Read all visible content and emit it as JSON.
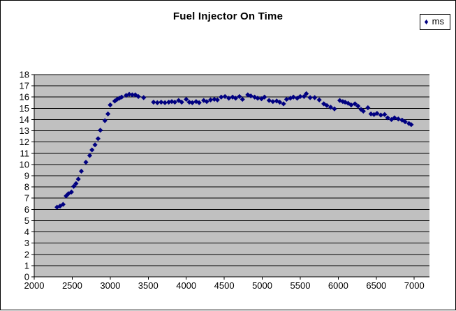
{
  "chart_data": {
    "type": "scatter",
    "title": "Fuel Injector On Time",
    "grid": true,
    "plot_background": "#C0C0C0",
    "gridline_color": "#000000",
    "axis_color": "#000000",
    "legend": {
      "position": "top-right",
      "entries": [
        {
          "label": "ms",
          "marker": "diamond-icon",
          "color": "#000080"
        }
      ]
    },
    "x_axis": {
      "min": 2000,
      "max": 7200,
      "major_unit": 500,
      "tick_labels": [
        2000,
        2500,
        3000,
        3500,
        4000,
        4500,
        5000,
        5500,
        6000,
        6500,
        7000
      ]
    },
    "y_axis": {
      "min": 0,
      "max": 18,
      "major_unit": 1,
      "tick_labels": [
        0,
        1,
        2,
        3,
        4,
        5,
        6,
        7,
        8,
        9,
        10,
        11,
        12,
        13,
        14,
        15,
        16,
        17,
        18
      ]
    },
    "series": [
      {
        "name": "ms",
        "marker": "diamond-icon",
        "marker_color": "#000080",
        "points": [
          [
            2300,
            6.2
          ],
          [
            2340,
            6.3
          ],
          [
            2380,
            6.45
          ],
          [
            2420,
            7.2
          ],
          [
            2450,
            7.4
          ],
          [
            2490,
            7.55
          ],
          [
            2520,
            8.05
          ],
          [
            2550,
            8.3
          ],
          [
            2580,
            8.7
          ],
          [
            2620,
            9.4
          ],
          [
            2680,
            10.2
          ],
          [
            2730,
            10.8
          ],
          [
            2760,
            11.3
          ],
          [
            2800,
            11.75
          ],
          [
            2840,
            12.3
          ],
          [
            2870,
            13.05
          ],
          [
            2930,
            13.9
          ],
          [
            2970,
            14.5
          ],
          [
            3000,
            15.3
          ],
          [
            3060,
            15.65
          ],
          [
            3090,
            15.8
          ],
          [
            3120,
            15.9
          ],
          [
            3150,
            16.0
          ],
          [
            3210,
            16.15
          ],
          [
            3250,
            16.25
          ],
          [
            3290,
            16.2
          ],
          [
            3330,
            16.2
          ],
          [
            3370,
            16.05
          ],
          [
            3440,
            15.95
          ],
          [
            3570,
            15.55
          ],
          [
            3620,
            15.5
          ],
          [
            3670,
            15.55
          ],
          [
            3720,
            15.5
          ],
          [
            3770,
            15.55
          ],
          [
            3810,
            15.6
          ],
          [
            3850,
            15.55
          ],
          [
            3900,
            15.7
          ],
          [
            3940,
            15.55
          ],
          [
            4000,
            15.8
          ],
          [
            4040,
            15.55
          ],
          [
            4080,
            15.5
          ],
          [
            4130,
            15.6
          ],
          [
            4170,
            15.5
          ],
          [
            4230,
            15.7
          ],
          [
            4270,
            15.6
          ],
          [
            4320,
            15.75
          ],
          [
            4370,
            15.8
          ],
          [
            4410,
            15.75
          ],
          [
            4460,
            16.0
          ],
          [
            4510,
            16.05
          ],
          [
            4560,
            15.9
          ],
          [
            4610,
            16.0
          ],
          [
            4650,
            15.9
          ],
          [
            4700,
            16.05
          ],
          [
            4740,
            15.8
          ],
          [
            4810,
            16.2
          ],
          [
            4850,
            16.1
          ],
          [
            4900,
            16.0
          ],
          [
            4940,
            15.9
          ],
          [
            4990,
            15.85
          ],
          [
            5030,
            16.0
          ],
          [
            5090,
            15.7
          ],
          [
            5140,
            15.6
          ],
          [
            5190,
            15.65
          ],
          [
            5230,
            15.55
          ],
          [
            5280,
            15.4
          ],
          [
            5320,
            15.8
          ],
          [
            5370,
            15.9
          ],
          [
            5410,
            16.0
          ],
          [
            5460,
            15.9
          ],
          [
            5500,
            16.05
          ],
          [
            5550,
            16.05
          ],
          [
            5580,
            16.3
          ],
          [
            5630,
            15.95
          ],
          [
            5690,
            15.95
          ],
          [
            5750,
            15.75
          ],
          [
            5810,
            15.4
          ],
          [
            5850,
            15.25
          ],
          [
            5900,
            15.1
          ],
          [
            5950,
            14.95
          ],
          [
            6020,
            15.7
          ],
          [
            6060,
            15.6
          ],
          [
            6090,
            15.55
          ],
          [
            6130,
            15.45
          ],
          [
            6170,
            15.3
          ],
          [
            6220,
            15.4
          ],
          [
            6260,
            15.2
          ],
          [
            6300,
            14.9
          ],
          [
            6330,
            14.75
          ],
          [
            6390,
            15.05
          ],
          [
            6430,
            14.5
          ],
          [
            6470,
            14.45
          ],
          [
            6510,
            14.55
          ],
          [
            6560,
            14.4
          ],
          [
            6610,
            14.45
          ],
          [
            6650,
            14.15
          ],
          [
            6700,
            14.0
          ],
          [
            6740,
            14.15
          ],
          [
            6790,
            14.05
          ],
          [
            6840,
            13.95
          ],
          [
            6880,
            13.8
          ],
          [
            6930,
            13.65
          ],
          [
            6960,
            13.55
          ]
        ]
      }
    ]
  }
}
